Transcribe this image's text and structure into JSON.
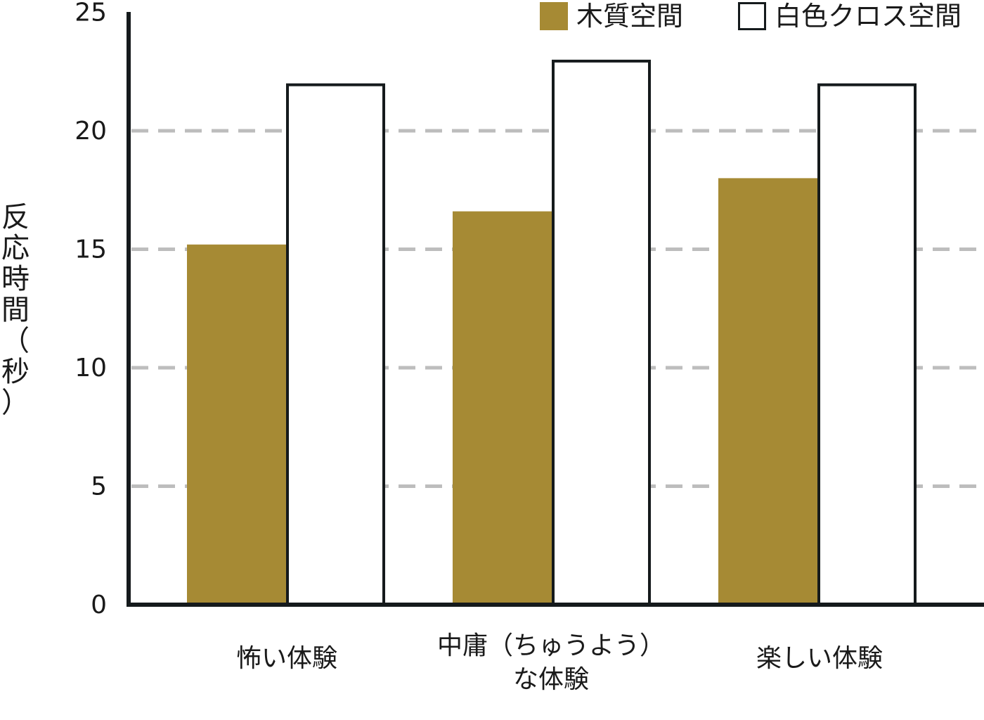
{
  "chart_data": {
    "type": "bar",
    "title": "",
    "xlabel": "",
    "ylabel": "反応時間（秒）",
    "ylim": [
      0,
      25
    ],
    "yticks": [
      0,
      5,
      10,
      15,
      20,
      25
    ],
    "grid": "dashed horizontal",
    "legend_position": "top-right",
    "categories": [
      [
        "怖い体験"
      ],
      [
        "中庸（ちゅうよう）",
        "な体験"
      ],
      [
        "楽しい体験"
      ]
    ],
    "series": [
      {
        "name": "木質空間",
        "values": [
          15.2,
          16.6,
          18.0
        ],
        "color": "#a68a34",
        "fill": "solid"
      },
      {
        "name": "白色クロス空間",
        "values": [
          22.0,
          23.0,
          22.0
        ],
        "color": "#ffffff",
        "fill": "outline",
        "stroke": "#151a1c"
      }
    ]
  }
}
